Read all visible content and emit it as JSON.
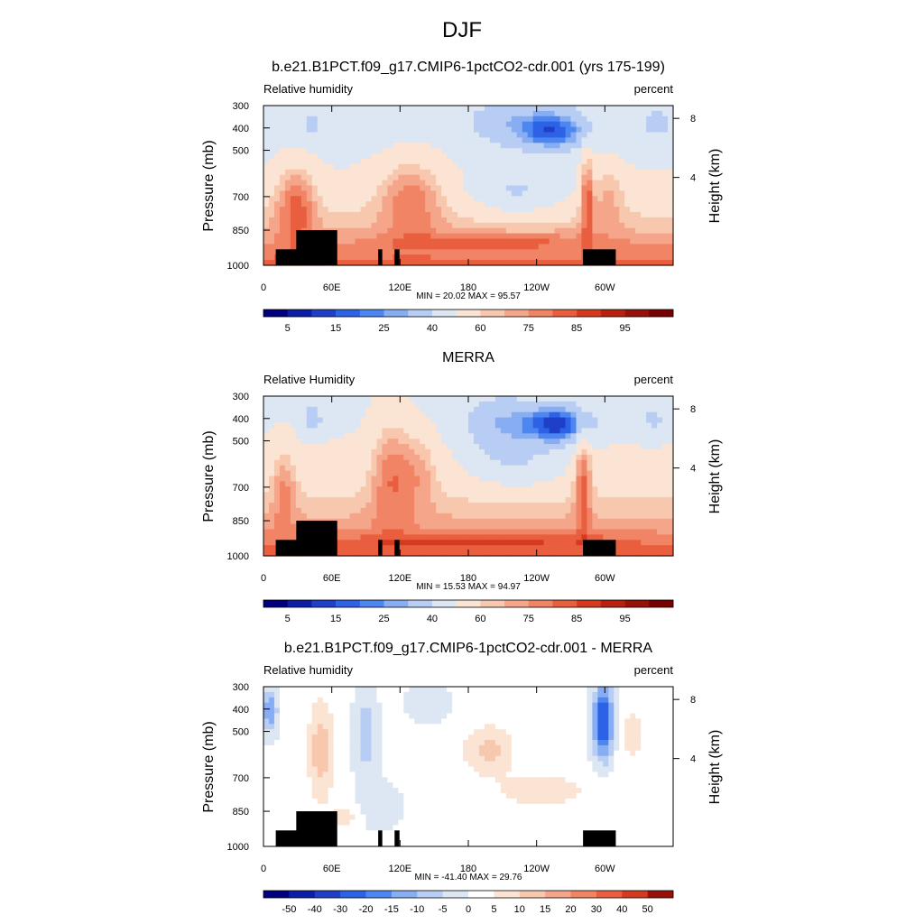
{
  "main_title": "DJF",
  "chart_data": [
    {
      "type": "heatmap",
      "title": "b.e21.B1PCT.f09_g17.CMIP6-1pctCO2-cdr.001 (yrs 175-199)",
      "left_label": "Relative humidity",
      "right_label": "percent",
      "ylabel": "Pressure (mb)",
      "ylabel_right": "Height (km)",
      "pressure_ticks": [
        "300",
        "400",
        "500",
        "700",
        "850",
        "1000"
      ],
      "height_ticks": [
        "8",
        "4"
      ],
      "xlim": [
        0,
        360
      ],
      "x_ticks": [
        "0",
        "60E",
        "120E",
        "180",
        "120W",
        "60W"
      ],
      "stats": "MIN =  20.02  MAX =  95.57",
      "colorbar_labels": [
        "5",
        "15",
        "25",
        "40",
        "60",
        "75",
        "85",
        "95"
      ],
      "colorbar_colors": [
        "#00007f",
        "#0d1ea6",
        "#1f3fc8",
        "#2d62e6",
        "#4c86f0",
        "#87adf3",
        "#b8cdf4",
        "#dde6f3",
        "#fbe4d3",
        "#f8c8ae",
        "#f5a68a",
        "#f08465",
        "#e85e3e",
        "#d63a1e",
        "#b8200f",
        "#98100a",
        "#780000"
      ],
      "field": "model"
    },
    {
      "type": "heatmap",
      "title": "MERRA",
      "left_label": "Relative Humidity",
      "right_label": "percent",
      "ylabel": "Pressure (mb)",
      "ylabel_right": "Height (km)",
      "pressure_ticks": [
        "300",
        "400",
        "500",
        "700",
        "850",
        "1000"
      ],
      "height_ticks": [
        "8",
        "4"
      ],
      "xlim": [
        0,
        360
      ],
      "x_ticks": [
        "0",
        "60E",
        "120E",
        "180",
        "120W",
        "60W"
      ],
      "stats": "MIN =  15.53  MAX =  94.97",
      "colorbar_labels": [
        "5",
        "15",
        "25",
        "40",
        "60",
        "75",
        "85",
        "95"
      ],
      "colorbar_colors": [
        "#00007f",
        "#0d1ea6",
        "#1f3fc8",
        "#2d62e6",
        "#4c86f0",
        "#87adf3",
        "#b8cdf4",
        "#dde6f3",
        "#fbe4d3",
        "#f8c8ae",
        "#f5a68a",
        "#f08465",
        "#e85e3e",
        "#d63a1e",
        "#b8200f",
        "#98100a",
        "#780000"
      ],
      "field": "obs"
    },
    {
      "type": "heatmap",
      "title": "b.e21.B1PCT.f09_g17.CMIP6-1pctCO2-cdr.001 - MERRA",
      "left_label": "Relative humidity",
      "right_label": "percent",
      "ylabel": "Pressure (mb)",
      "ylabel_right": "Height (km)",
      "pressure_ticks": [
        "300",
        "400",
        "500",
        "700",
        "850",
        "1000"
      ],
      "height_ticks": [
        "8",
        "4"
      ],
      "xlim": [
        0,
        360
      ],
      "x_ticks": [
        "0",
        "60E",
        "120E",
        "180",
        "120W",
        "60W"
      ],
      "stats": "MIN = -41.40  MAX =  29.76",
      "colorbar_labels": [
        "-50",
        "-40",
        "-30",
        "-20",
        "-15",
        "-10",
        "-5",
        "0",
        "5",
        "10",
        "15",
        "20",
        "30",
        "40",
        "50"
      ],
      "colorbar_colors": [
        "#00007f",
        "#0d1ea6",
        "#1f3fc8",
        "#2d62e6",
        "#4c86f0",
        "#87adf3",
        "#b8cdf4",
        "#dde6f3",
        "#ffffff",
        "#fbe4d3",
        "#f8c8ae",
        "#f5a68a",
        "#f08465",
        "#e85e3e",
        "#d63a1e",
        "#98100a"
      ],
      "field": "diff"
    }
  ]
}
